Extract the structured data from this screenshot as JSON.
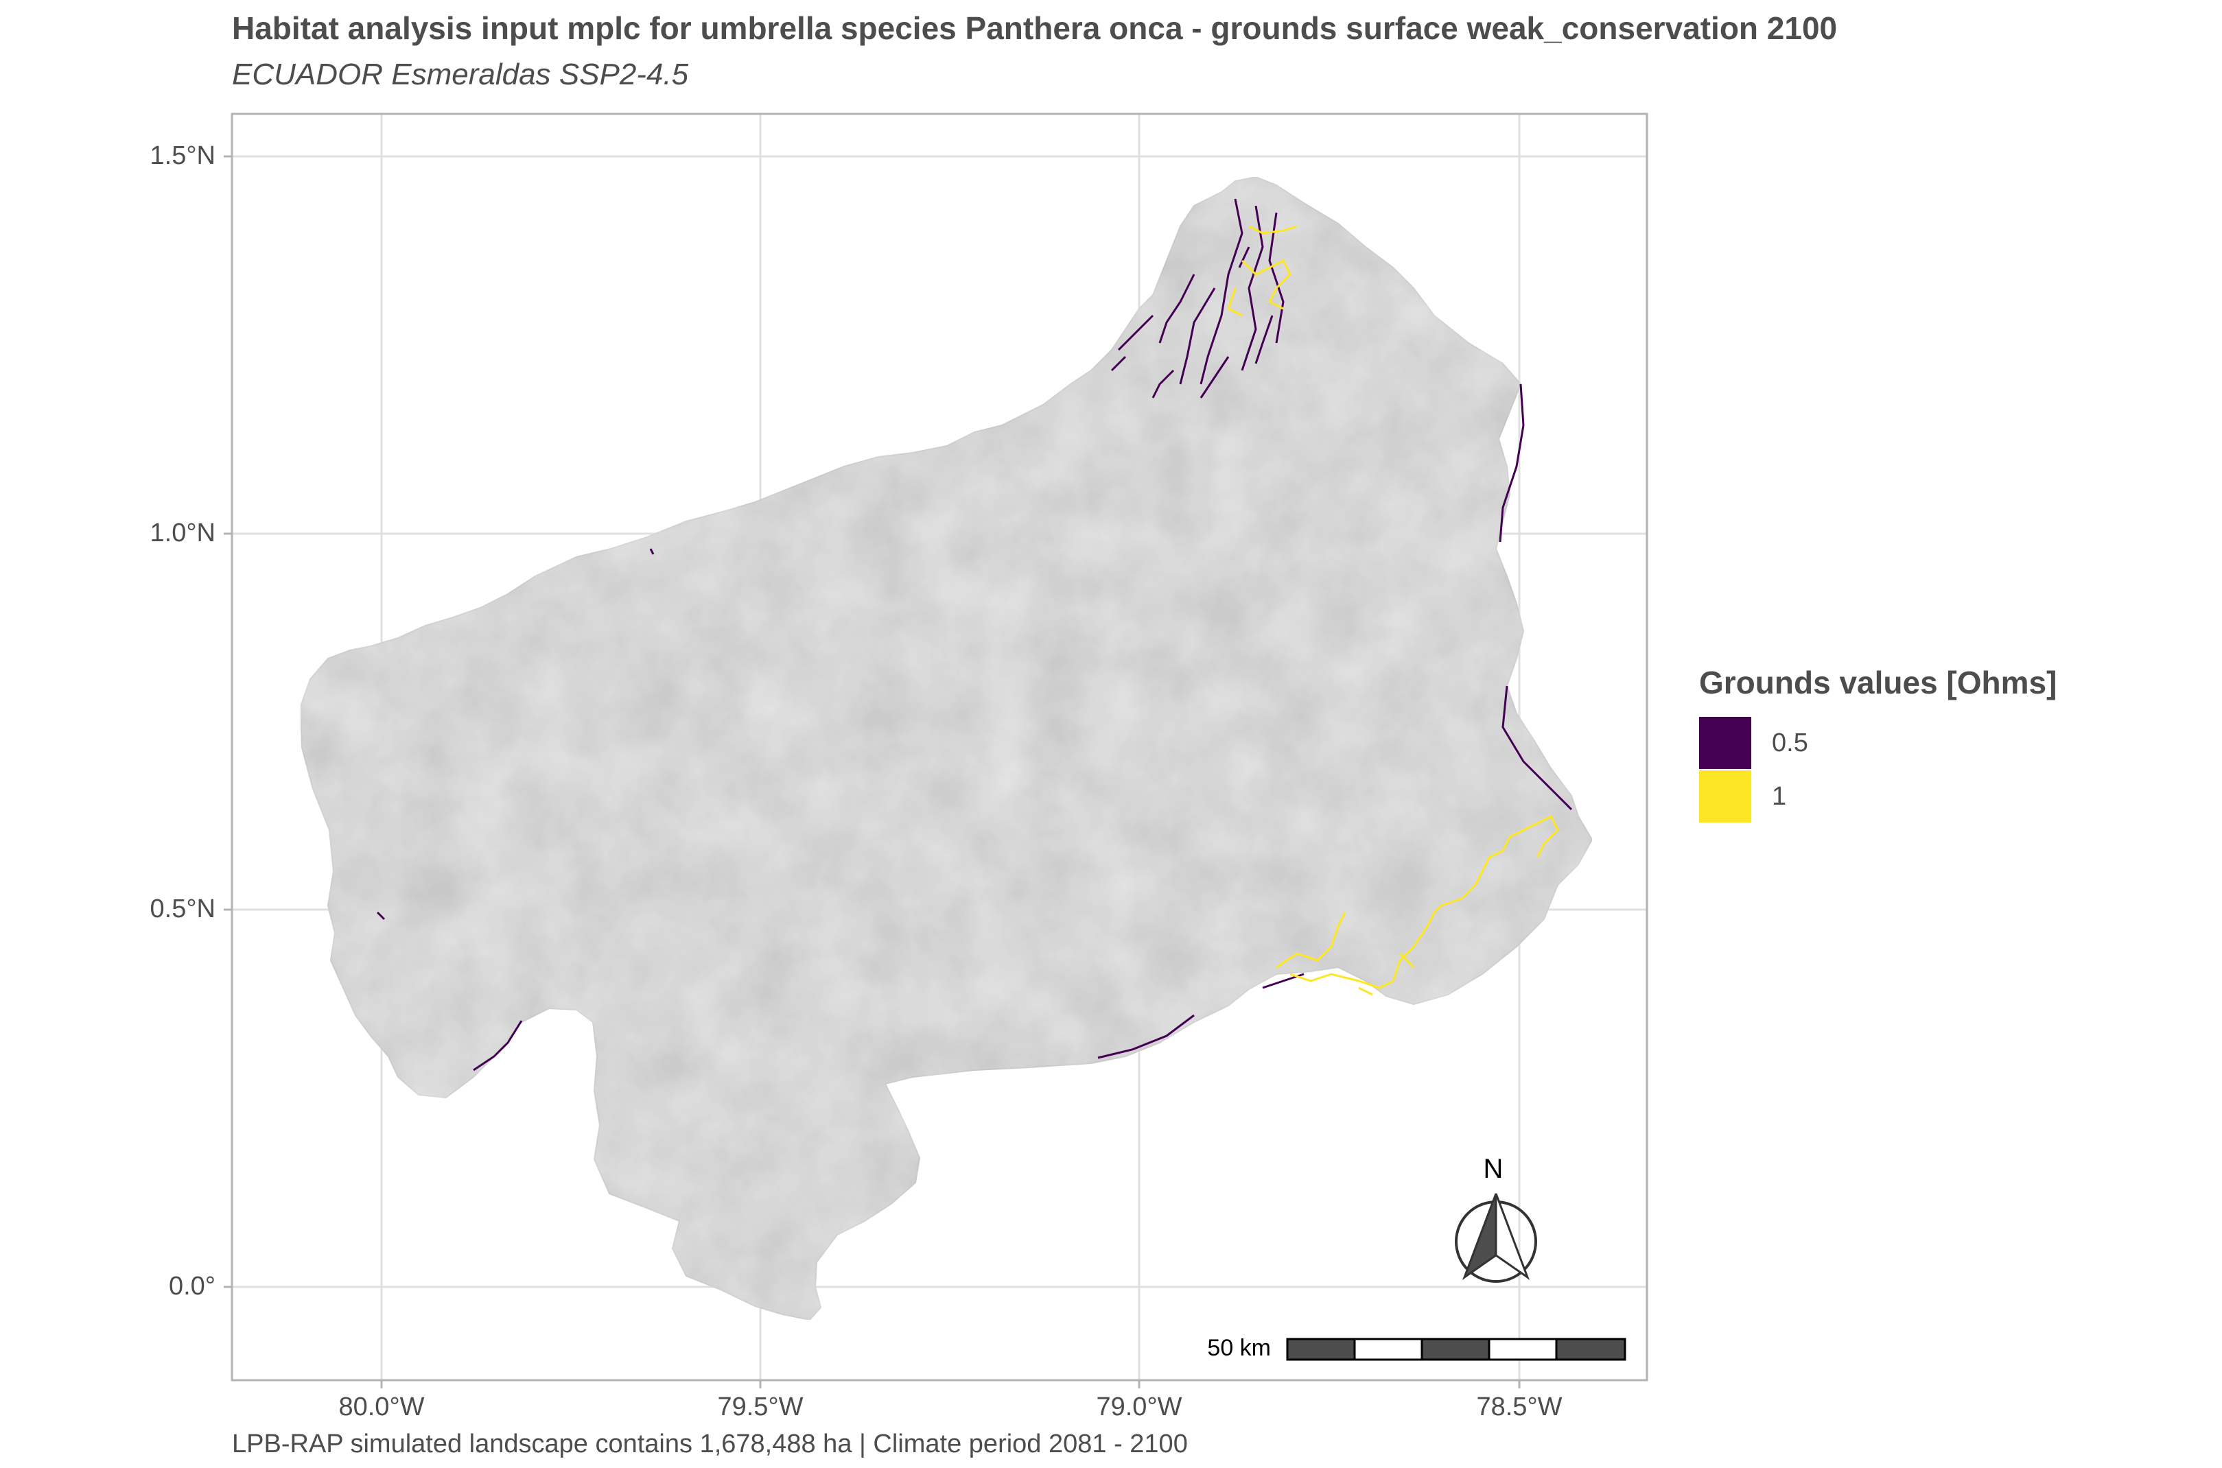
{
  "title": "Habitat analysis input mplc for umbrella species Panthera onca - grounds surface weak_conservation 2100",
  "subtitle": "ECUADOR Esmeraldas SSP2-4.5",
  "caption": "LPB-RAP simulated landscape contains 1,678,488 ha | Climate period 2081 - 2100",
  "axes": {
    "y_ticks": [
      "1.5°N",
      "1.0°N",
      "0.5°N",
      "0.0°"
    ],
    "x_ticks": [
      "80.0°W",
      "79.5°W",
      "79.0°W",
      "78.5°W"
    ],
    "lon_range": [
      -80.2,
      -78.33
    ],
    "lat_range": [
      -0.12,
      1.56
    ],
    "grid": true
  },
  "legend": {
    "title": "Grounds values [Ohms]",
    "items": [
      {
        "label": "0.5",
        "color": "#440154"
      },
      {
        "label": "1",
        "color": "#FDE725"
      }
    ]
  },
  "scale_bar": {
    "label": "50 km"
  },
  "north_arrow": {
    "label": "N"
  },
  "colors": {
    "land": "#e9e9e9",
    "panel_border": "#b3b3b3",
    "grid": "#e0e0e0"
  }
}
